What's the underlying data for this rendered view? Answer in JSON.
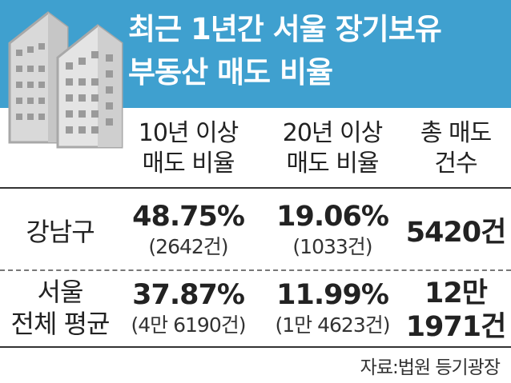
{
  "title": {
    "line1": "최근 1년간 서울 장기보유",
    "line2": "부동산 매도 비율"
  },
  "icon": "apartment-buildings-icon",
  "colors": {
    "band": "#3fa0cf",
    "building": "#d9d9d9",
    "building_outline": "#b0b0b0"
  },
  "columns": [
    {
      "line1": "10년 이상",
      "line2": "매도 비율"
    },
    {
      "line1": "20년 이상",
      "line2": "매도 비율"
    },
    {
      "line1": "총 매도",
      "line2": "건수"
    }
  ],
  "rows": [
    {
      "label_line1": "강남구",
      "label_line2": "",
      "c1_main": "48.75%",
      "c1_sub": "(2642건)",
      "c2_main": "19.06%",
      "c2_sub": "(1033건)",
      "c3_line1": "5420건",
      "c3_line2": ""
    },
    {
      "label_line1": "서울",
      "label_line2": "전체 평균",
      "c1_main": "37.87%",
      "c1_sub": "(4만 6190건)",
      "c2_main": "11.99%",
      "c2_sub": "(1만 4623건)",
      "c3_line1": "12만",
      "c3_line2": "1971건"
    }
  ],
  "source": "자료:법원 등기광장"
}
